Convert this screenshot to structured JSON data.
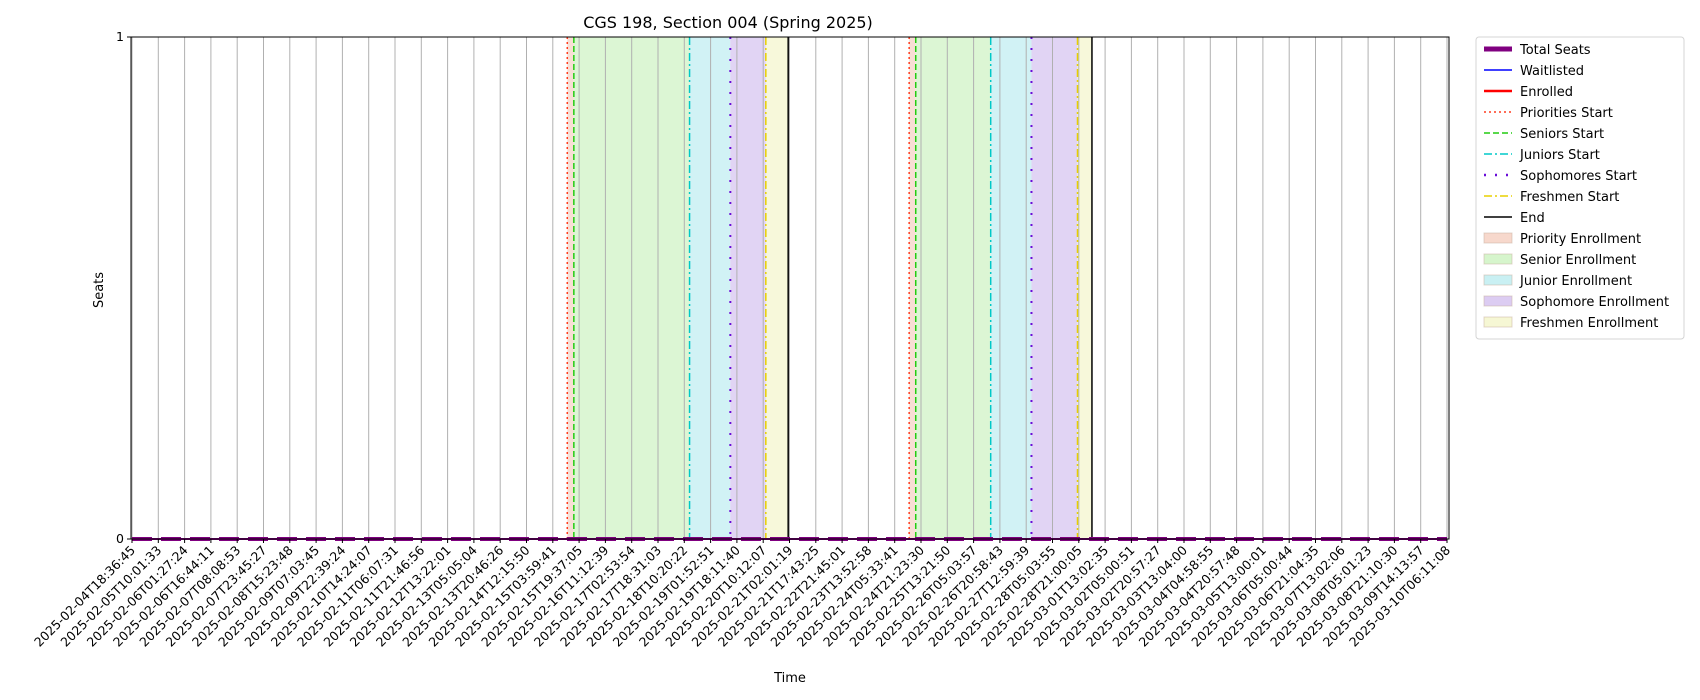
{
  "chart_data": {
    "type": "line",
    "title": "CGS 198, Section 004 (Spring 2025)",
    "xlabel": "Time",
    "ylabel": "Seats",
    "ylim": [
      0,
      1
    ],
    "yticks": [
      "0",
      "1"
    ],
    "grid": "vertical",
    "legend_position": "outside right, top",
    "x": [
      "2025-02-04T18:36:45",
      "2025-02-05T10:01:33",
      "2025-02-06T01:27:24",
      "2025-02-06T16:44:11",
      "2025-02-07T08:08:53",
      "2025-02-07T23:45:27",
      "2025-02-08T15:23:48",
      "2025-02-09T07:03:45",
      "2025-02-09T22:39:24",
      "2025-02-10T14:24:07",
      "2025-02-11T06:07:31",
      "2025-02-11T21:46:56",
      "2025-02-12T13:22:01",
      "2025-02-13T05:05:04",
      "2025-02-13T20:46:26",
      "2025-02-14T12:15:50",
      "2025-02-15T03:59:41",
      "2025-02-15T19:37:05",
      "2025-02-16T11:12:39",
      "2025-02-17T02:53:54",
      "2025-02-17T18:31:03",
      "2025-02-18T10:20:22",
      "2025-02-19T01:52:51",
      "2025-02-19T18:11:40",
      "2025-02-20T10:12:07",
      "2025-02-21T02:01:19",
      "2025-02-21T17:43:25",
      "2025-02-22T21:45:01",
      "2025-02-23T13:52:58",
      "2025-02-24T05:33:41",
      "2025-02-24T21:23:30",
      "2025-02-25T13:21:50",
      "2025-02-26T05:03:57",
      "2025-02-26T20:58:43",
      "2025-02-27T12:59:39",
      "2025-02-28T05:03:55",
      "2025-02-28T21:00:05",
      "2025-03-01T13:02:35",
      "2025-03-02T05:00:51",
      "2025-03-02T20:57:27",
      "2025-03-03T13:04:00",
      "2025-03-04T04:58:55",
      "2025-03-04T20:57:48",
      "2025-03-05T13:00:01",
      "2025-03-06T05:00:44",
      "2025-03-06T21:04:35",
      "2025-03-07T13:02:06",
      "2025-03-08T05:01:23",
      "2025-03-08T21:10:30",
      "2025-03-09T14:13:57",
      "2025-03-10T06:11:08"
    ],
    "series": [
      {
        "name": "Total Seats",
        "color": "#800080",
        "style": "thick solid",
        "values": [
          0,
          0,
          0,
          0,
          0,
          0,
          0,
          0,
          0,
          0,
          0,
          0,
          0,
          0,
          0,
          0,
          0,
          0,
          0,
          0,
          0,
          0,
          0,
          0,
          0,
          0,
          0,
          0,
          0,
          0,
          0,
          0,
          0,
          0,
          0,
          0,
          0,
          0,
          0,
          0,
          0,
          0,
          0,
          0,
          0,
          0,
          0,
          0,
          0,
          0,
          0
        ]
      },
      {
        "name": "Waitlisted",
        "color": "#0000ff",
        "style": "solid",
        "values": [
          0,
          0,
          0,
          0,
          0,
          0,
          0,
          0,
          0,
          0,
          0,
          0,
          0,
          0,
          0,
          0,
          0,
          0,
          0,
          0,
          0,
          0,
          0,
          0,
          0,
          0,
          0,
          0,
          0,
          0,
          0,
          0,
          0,
          0,
          0,
          0,
          0,
          0,
          0,
          0,
          0,
          0,
          0,
          0,
          0,
          0,
          0,
          0,
          0,
          0,
          0
        ]
      },
      {
        "name": "Enrolled",
        "color": "#ff0000",
        "style": "solid",
        "values": [
          0,
          0,
          0,
          0,
          0,
          0,
          0,
          0,
          0,
          0,
          0,
          0,
          0,
          0,
          0,
          0,
          0,
          0,
          0,
          0,
          0,
          0,
          0,
          0,
          0,
          0,
          0,
          0,
          0,
          0,
          0,
          0,
          0,
          0,
          0,
          0,
          0,
          0,
          0,
          0,
          0,
          0,
          0,
          0,
          0,
          0,
          0,
          0,
          0,
          0,
          0
        ]
      }
    ],
    "vlines": [
      {
        "name": "Priorities Start",
        "color": "#ff3c1e",
        "dash": "dotted",
        "at": [
          16.55,
          29.55
        ]
      },
      {
        "name": "Seniors Start",
        "color": "#22cc11",
        "dash": "dashed",
        "at": [
          16.8,
          29.8
        ]
      },
      {
        "name": "Juniors Start",
        "color": "#00c8c8",
        "dash": "dashdot",
        "at": [
          21.2,
          32.65
        ]
      },
      {
        "name": "Sophomores Start",
        "color": "#6a0dd8",
        "dash": "loose",
        "at": [
          22.75,
          34.2
        ]
      },
      {
        "name": "Freshmen Start",
        "color": "#e8d000",
        "dash": "dashdot",
        "at": [
          24.1,
          35.95
        ]
      },
      {
        "name": "End",
        "color": "#000000",
        "dash": "solid",
        "at": [
          24.95,
          36.5
        ]
      }
    ],
    "spans": [
      {
        "name": "Priority Enrollment",
        "color": "#f7d8cc",
        "ranges": [
          [
            16.55,
            16.8
          ],
          [
            29.55,
            29.8
          ]
        ]
      },
      {
        "name": "Senior Enrollment",
        "color": "#d6f5cc",
        "ranges": [
          [
            16.8,
            21.2
          ],
          [
            29.8,
            32.65
          ]
        ]
      },
      {
        "name": "Junior Enrollment",
        "color": "#c9f0f3",
        "ranges": [
          [
            21.2,
            22.75
          ],
          [
            32.65,
            34.2
          ]
        ]
      },
      {
        "name": "Sophomore Enrollment",
        "color": "#dcccf2",
        "ranges": [
          [
            22.75,
            24.1
          ],
          [
            34.2,
            35.95
          ]
        ]
      },
      {
        "name": "Freshmen Enrollment",
        "color": "#f6f7d4",
        "ranges": [
          [
            24.1,
            24.95
          ],
          [
            35.95,
            36.5
          ]
        ]
      }
    ],
    "legend": [
      {
        "label": "Total Seats",
        "kind": "line",
        "color": "#800080",
        "dash": "thick"
      },
      {
        "label": "Waitlisted",
        "kind": "line",
        "color": "#0000ff",
        "dash": "solid"
      },
      {
        "label": "Enrolled",
        "kind": "line",
        "color": "#ff0000",
        "dash": "solid-bold"
      },
      {
        "label": "Priorities Start",
        "kind": "line",
        "color": "#ff3c1e",
        "dash": "dotted"
      },
      {
        "label": "Seniors Start",
        "kind": "line",
        "color": "#22cc11",
        "dash": "dashed"
      },
      {
        "label": "Juniors Start",
        "kind": "line",
        "color": "#00c8c8",
        "dash": "dashdot"
      },
      {
        "label": "Sophomores Start",
        "kind": "line",
        "color": "#6a0dd8",
        "dash": "loose"
      },
      {
        "label": "Freshmen Start",
        "kind": "line",
        "color": "#e8d000",
        "dash": "dashdot"
      },
      {
        "label": "End",
        "kind": "line",
        "color": "#000000",
        "dash": "solid"
      },
      {
        "label": "Priority Enrollment",
        "kind": "patch",
        "color": "#f7d8cc"
      },
      {
        "label": "Senior Enrollment",
        "kind": "patch",
        "color": "#d6f5cc"
      },
      {
        "label": "Junior Enrollment",
        "kind": "patch",
        "color": "#c9f0f3"
      },
      {
        "label": "Sophomore Enrollment",
        "kind": "patch",
        "color": "#dcccf2"
      },
      {
        "label": "Freshmen Enrollment",
        "kind": "patch",
        "color": "#f6f7d4"
      }
    ]
  }
}
